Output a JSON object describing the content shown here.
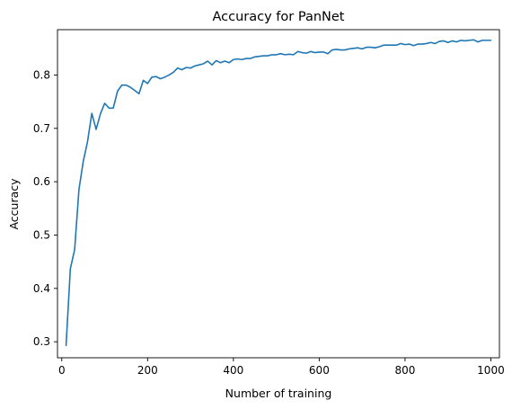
{
  "chart_data": {
    "type": "line",
    "title": "Accuracy for PanNet",
    "xlabel": "Number of training",
    "ylabel": "Accuracy",
    "xlim": [
      -10,
      1020
    ],
    "ylim": [
      0.27,
      0.885
    ],
    "x_ticks": [
      0,
      200,
      400,
      600,
      800,
      1000
    ],
    "x_tick_labels": [
      "0",
      "200",
      "400",
      "600",
      "800",
      "1000"
    ],
    "y_ticks": [
      0.3,
      0.4,
      0.5,
      0.6,
      0.7,
      0.8
    ],
    "y_tick_labels": [
      "0.3",
      "0.4",
      "0.5",
      "0.6",
      "0.7",
      "0.8"
    ],
    "grid": false,
    "series": [
      {
        "color": "#1f77b4",
        "x": [
          10,
          20,
          30,
          40,
          50,
          60,
          70,
          80,
          90,
          100,
          110,
          120,
          130,
          140,
          150,
          160,
          170,
          180,
          190,
          200,
          210,
          220,
          230,
          240,
          250,
          260,
          270,
          280,
          290,
          300,
          310,
          320,
          330,
          340,
          350,
          360,
          370,
          380,
          390,
          400,
          410,
          420,
          430,
          440,
          450,
          460,
          470,
          480,
          490,
          500,
          510,
          520,
          530,
          540,
          550,
          560,
          570,
          580,
          590,
          600,
          610,
          620,
          630,
          640,
          650,
          660,
          670,
          680,
          690,
          700,
          710,
          720,
          730,
          740,
          750,
          760,
          770,
          780,
          790,
          800,
          810,
          820,
          830,
          840,
          850,
          860,
          870,
          880,
          890,
          900,
          910,
          920,
          930,
          940,
          950,
          960,
          970,
          980,
          990,
          1000
        ],
        "y": [
          0.293,
          0.437,
          0.473,
          0.585,
          0.638,
          0.675,
          0.728,
          0.698,
          0.727,
          0.747,
          0.738,
          0.738,
          0.77,
          0.781,
          0.781,
          0.777,
          0.771,
          0.765,
          0.79,
          0.784,
          0.796,
          0.797,
          0.793,
          0.796,
          0.8,
          0.805,
          0.813,
          0.81,
          0.814,
          0.813,
          0.817,
          0.819,
          0.821,
          0.826,
          0.819,
          0.827,
          0.823,
          0.826,
          0.823,
          0.829,
          0.83,
          0.829,
          0.831,
          0.831,
          0.834,
          0.835,
          0.836,
          0.836,
          0.838,
          0.838,
          0.84,
          0.838,
          0.839,
          0.838,
          0.844,
          0.842,
          0.841,
          0.844,
          0.842,
          0.843,
          0.843,
          0.84,
          0.847,
          0.848,
          0.847,
          0.847,
          0.849,
          0.85,
          0.851,
          0.849,
          0.852,
          0.852,
          0.851,
          0.853,
          0.856,
          0.856,
          0.856,
          0.856,
          0.859,
          0.857,
          0.858,
          0.855,
          0.858,
          0.858,
          0.859,
          0.861,
          0.859,
          0.863,
          0.864,
          0.861,
          0.864,
          0.862,
          0.865,
          0.864,
          0.865,
          0.866,
          0.862,
          0.865,
          0.865,
          0.865
        ]
      }
    ]
  }
}
